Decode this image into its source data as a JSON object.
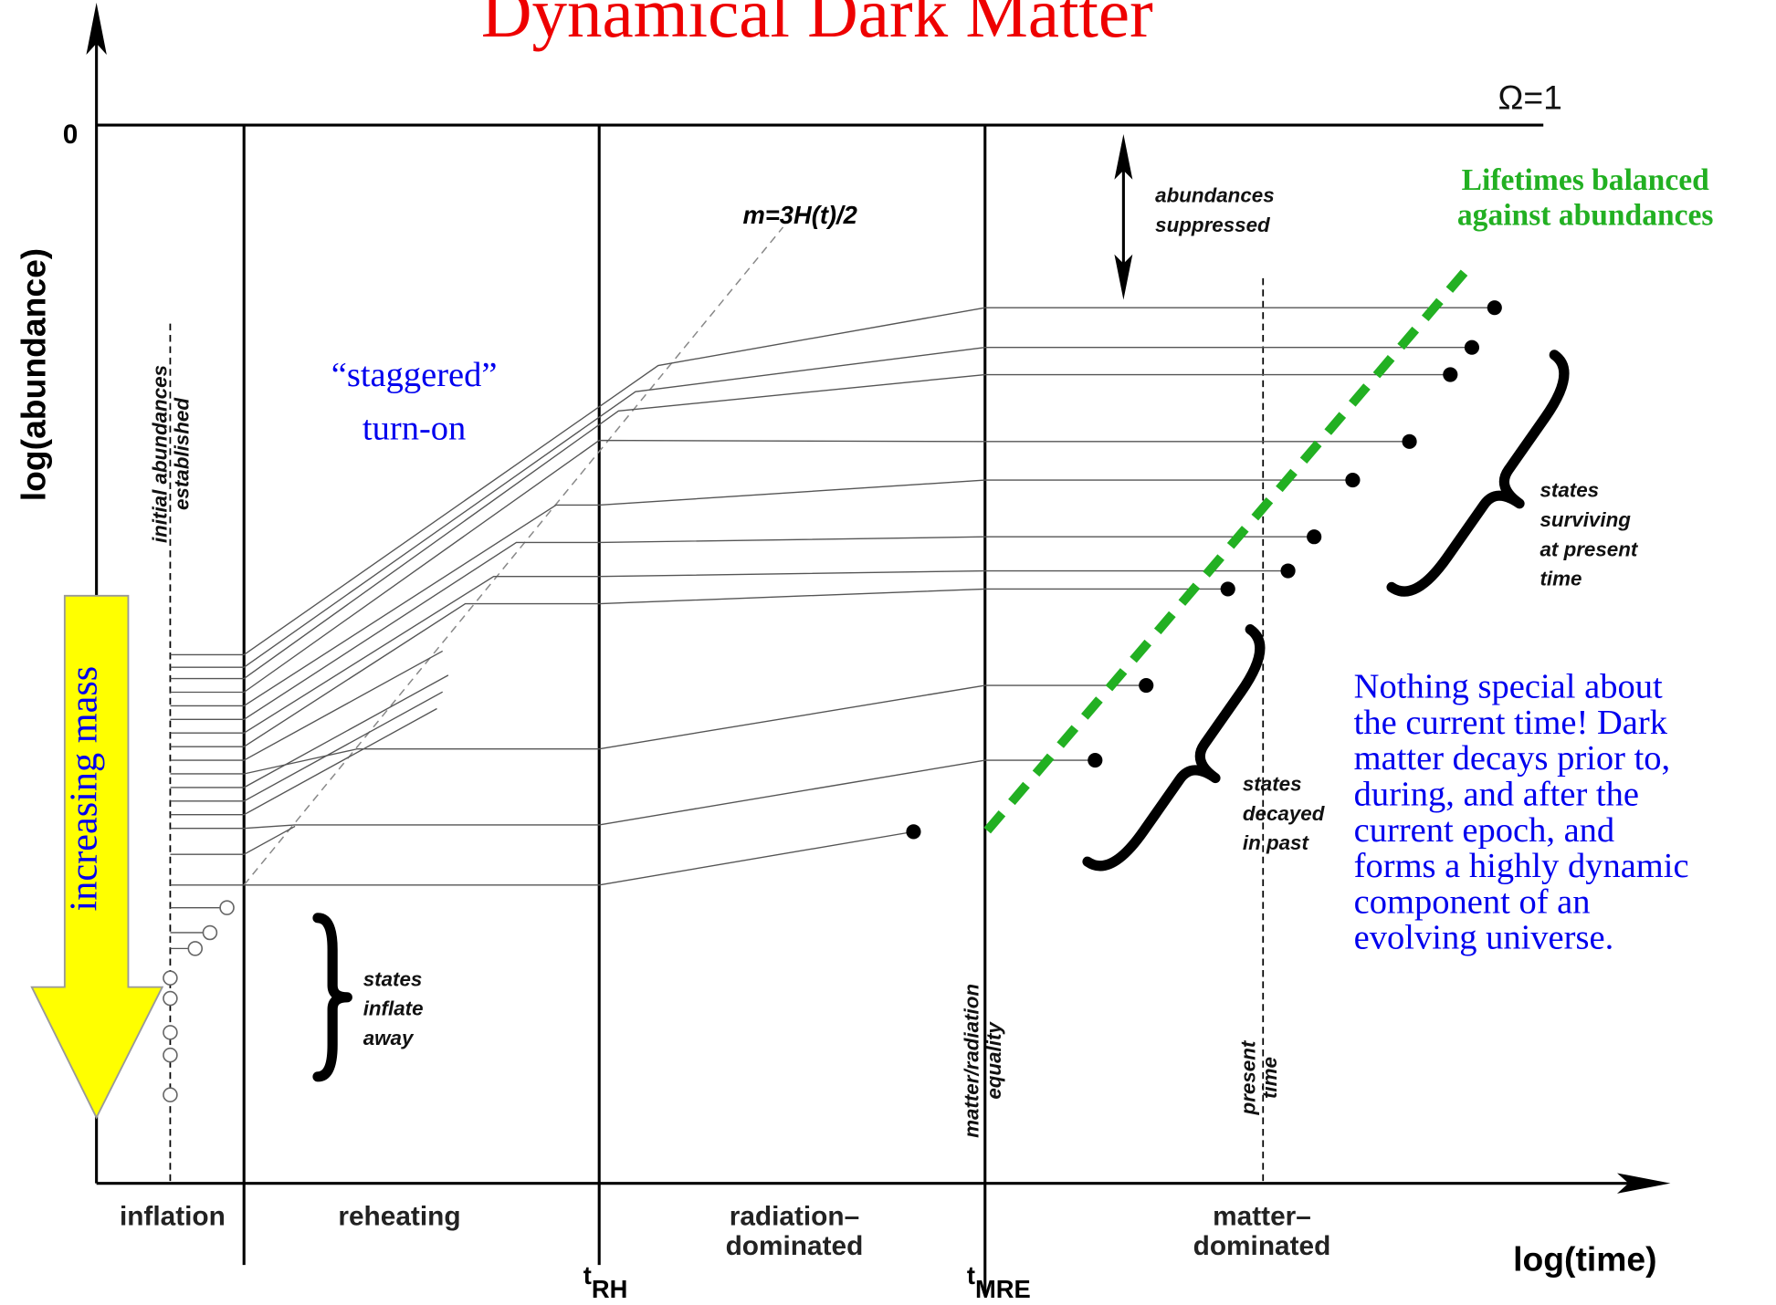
{
  "title": "Dynamical Dark Matter",
  "axes": {
    "y_label": "log(abundance)",
    "x_label": "log(time)",
    "zero": "0",
    "omega": "Ω=1"
  },
  "phases": [
    {
      "lines": [
        "inflation"
      ]
    },
    {
      "lines": [
        "reheating"
      ]
    },
    {
      "lines": [
        "radiation–",
        "dominated"
      ]
    },
    {
      "lines": [
        "matter–",
        "dominated"
      ]
    }
  ],
  "times": [
    {
      "base": "t",
      "sub": "RH"
    },
    {
      "base": "t",
      "sub": "MRE"
    }
  ],
  "annotations": {
    "increasing_mass": "increasing mass",
    "initial": [
      "initial abundances",
      "established"
    ],
    "turn_on_line": "m=3H(t)/2",
    "staggered": [
      "“staggered”",
      "turn-on"
    ],
    "suppressed": [
      "abundances",
      "suppressed"
    ],
    "lifetimes": [
      "Lifetimes balanced",
      "against abundances"
    ],
    "surviving": [
      "states",
      "surviving",
      "at present",
      "time"
    ],
    "decayed": [
      "states",
      "decayed",
      "in past"
    ],
    "inflate": [
      "states",
      "inflate",
      "away"
    ],
    "equality": [
      "matter/radiation",
      "equality"
    ],
    "present": [
      "present",
      "time"
    ],
    "nothing": [
      "Nothing special about",
      "the current time!  Dark",
      "matter decays prior to,",
      "during, and after the",
      "current epoch, and",
      "forms a highly dynamic",
      "component of an",
      "evolving universe."
    ]
  }
}
